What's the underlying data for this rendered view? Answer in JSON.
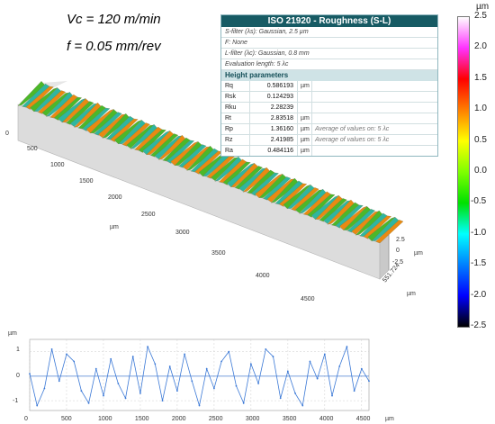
{
  "cutting": {
    "vc": "Vc = 120 m/min",
    "f": "f = 0.05 mm/rev"
  },
  "iso_table": {
    "title": "ISO 21920 - Roughness (S-L)",
    "filters": [
      "S-filter (λs): Gaussian, 2.5 µm",
      "F: None",
      "L-filter (λc): Gaussian, 0.8 mm",
      "Evaluation length: 5 λc"
    ],
    "section_header": "Height parameters",
    "rows": [
      {
        "name": "Rq",
        "value": "0.586193",
        "unit": "µm",
        "note": ""
      },
      {
        "name": "Rsk",
        "value": "0.124293",
        "unit": "",
        "note": ""
      },
      {
        "name": "Rku",
        "value": "2.28239",
        "unit": "",
        "note": ""
      },
      {
        "name": "Rt",
        "value": "2.83518",
        "unit": "µm",
        "note": ""
      },
      {
        "name": "Rp",
        "value": "1.36160",
        "unit": "µm",
        "note": "Average of values on: 5 λc"
      },
      {
        "name": "Rz",
        "value": "2.41985",
        "unit": "µm",
        "note": "Average of values on: 5 λc"
      },
      {
        "name": "Ra",
        "value": "0.484116",
        "unit": "µm",
        "note": ""
      }
    ]
  },
  "color_scale": {
    "unit": "µm",
    "ticks": [
      "2.5",
      "2.0",
      "1.5",
      "1.0",
      "0.5",
      "0.0",
      "-0.5",
      "-1.0",
      "-1.5",
      "-2.0",
      "-2.5"
    ],
    "colors": [
      "#ffffff",
      "#ff33ff",
      "#ff0000",
      "#ff7f00",
      "#ffff00",
      "#7fff00",
      "#00e000",
      "#00ffff",
      "#0080ff",
      "#0000ff",
      "#000000"
    ]
  },
  "surface3d": {
    "x_ticks": [
      "0",
      "500",
      "1000",
      "1500",
      "2000",
      "2500",
      "3000",
      "3500",
      "4000",
      "4500"
    ],
    "x_unit": "µm",
    "z_ticks": [
      "2.5",
      "0",
      "-2.5"
    ],
    "z_unit": "µm",
    "y_tick": "551.724",
    "y_unit": "µm"
  },
  "chart_data": {
    "type": "line",
    "ylabel": "µm",
    "x_unit": "µm",
    "xlim": [
      0,
      4600
    ],
    "ylim": [
      -1.4,
      1.5
    ],
    "x_ticks": [
      "0",
      "500",
      "1000",
      "1500",
      "2000",
      "2500",
      "3000",
      "3500",
      "4000",
      "4500"
    ],
    "y_ticks": [
      "1",
      "0",
      "-1"
    ],
    "grid": true,
    "series": [
      {
        "color": "#3a78d6",
        "x": [
          0,
          100,
          200,
          300,
          400,
          500,
          600,
          700,
          800,
          900,
          1000,
          1100,
          1200,
          1300,
          1400,
          1500,
          1600,
          1700,
          1800,
          1900,
          2000,
          2100,
          2200,
          2300,
          2400,
          2500,
          2600,
          2700,
          2800,
          2900,
          3000,
          3100,
          3200,
          3300,
          3400,
          3500,
          3600,
          3700,
          3800,
          3900,
          4000,
          4100,
          4200,
          4300,
          4400,
          4500,
          4600
        ],
        "y": [
          0.1,
          -1.2,
          -0.5,
          1.1,
          -0.2,
          0.9,
          0.6,
          -0.6,
          -1.1,
          0.3,
          -0.8,
          0.7,
          -0.3,
          -0.9,
          0.8,
          -0.7,
          1.2,
          0.5,
          -1.0,
          0.4,
          -0.6,
          0.9,
          -0.2,
          -1.2,
          0.3,
          -0.5,
          0.6,
          1.0,
          -0.4,
          -1.1,
          0.5,
          -0.3,
          1.1,
          0.8,
          -0.9,
          0.2,
          -0.7,
          -1.2,
          0.6,
          -0.1,
          0.9,
          -0.8,
          0.4,
          1.2,
          -0.6,
          0.3,
          -0.2
        ]
      }
    ]
  }
}
